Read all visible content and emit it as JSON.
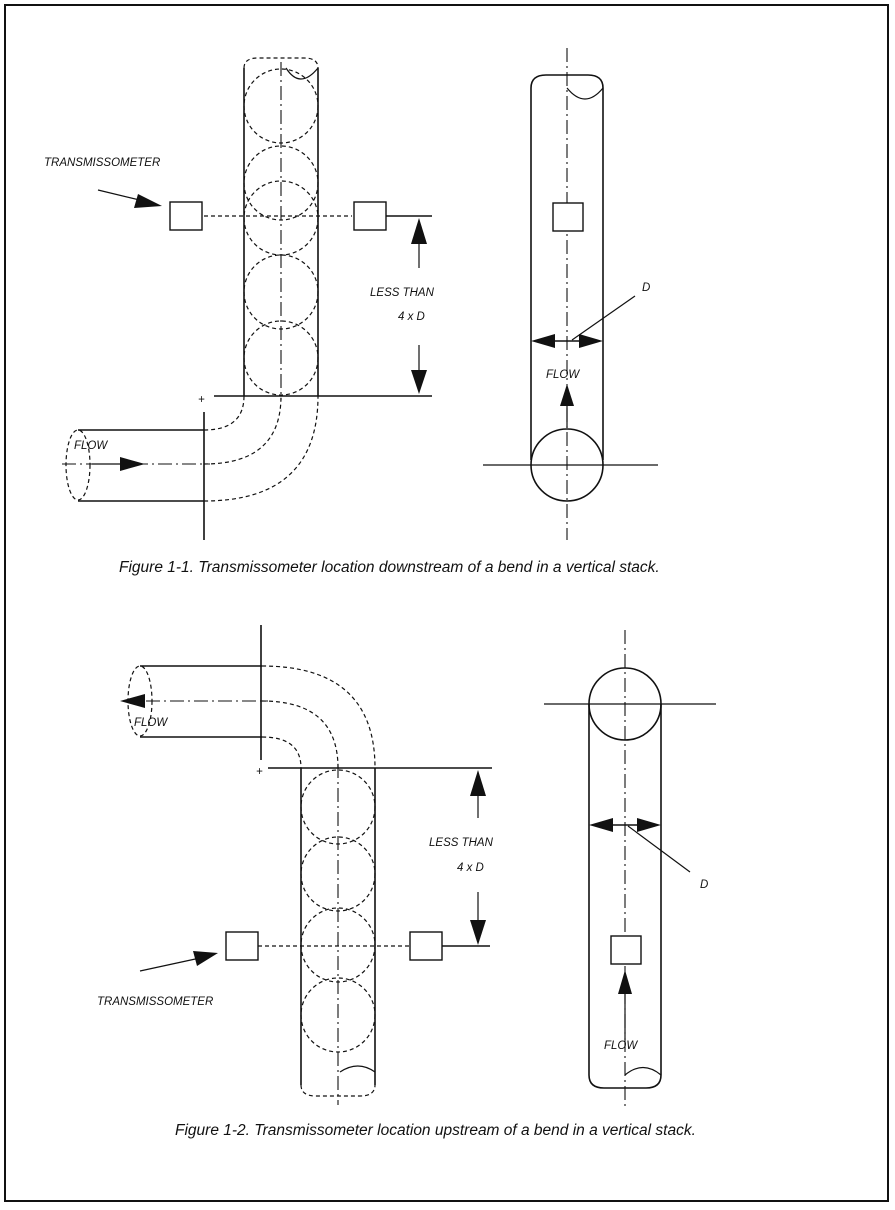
{
  "figure1": {
    "transmissometer_label": "TRANSMISSOMETER",
    "less_than_label": "LESS THAN",
    "distance_label": "4 x D",
    "flow_label_left": "FLOW",
    "flow_label_right": "FLOW",
    "diameter_label": "D",
    "caption": "Figure 1-1. Transmissometer location downstream of a bend in a vertical stack."
  },
  "figure2": {
    "transmissometer_label": "TRANSMISSOMETER",
    "less_than_label": "LESS THAN",
    "distance_label": "4 x D",
    "flow_label_left": "FLOW",
    "flow_label_right": "FLOW",
    "diameter_label": "D",
    "caption": "Figure 1-2.  Transmissometer location upstream of a bend in a vertical stack."
  }
}
